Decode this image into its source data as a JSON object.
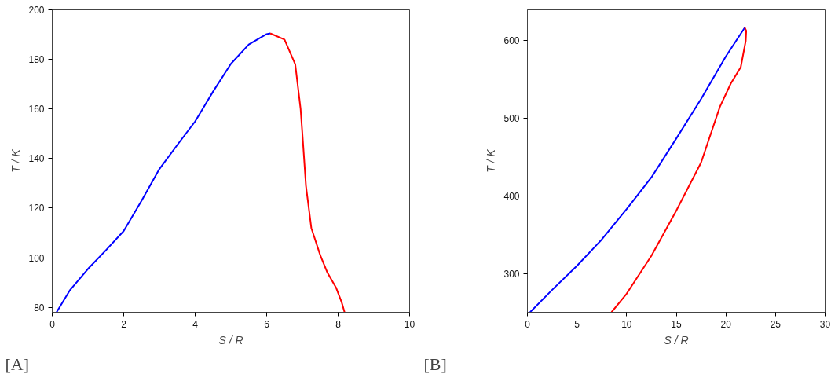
{
  "chart_data": [
    {
      "type": "line",
      "xlabel": "S / R",
      "ylabel": "T / K",
      "xlim": [
        0,
        10
      ],
      "ylim": [
        78,
        200
      ],
      "xticks": [
        0,
        2,
        4,
        6,
        8,
        10
      ],
      "yticks": [
        80,
        100,
        120,
        140,
        160,
        180,
        200
      ],
      "annotations": [
        "[A]"
      ],
      "series": [
        {
          "color": "#0000ff",
          "x": [
            0.12,
            0.5,
            1,
            1.5,
            2,
            2.5,
            3,
            3.5,
            4,
            4.5,
            5,
            5.5,
            6,
            6.1
          ],
          "values": [
            78,
            87,
            95.5,
            103,
            110.8,
            123,
            135.8,
            145.5,
            155,
            167,
            178.2,
            186,
            190.2,
            190.5
          ]
        },
        {
          "color": "#ff0000",
          "x": [
            6.1,
            6.5,
            6.8,
            6.95,
            7.0,
            7.1,
            7.25,
            7.5,
            7.7,
            7.94,
            8.1,
            8.18
          ],
          "values": [
            190.5,
            188,
            178,
            160,
            150,
            129,
            112,
            101,
            94,
            88,
            82,
            78
          ]
        }
      ]
    },
    {
      "type": "line",
      "xlabel": "S / R",
      "ylabel": "T / K",
      "xlim": [
        0,
        30
      ],
      "ylim": [
        250,
        640
      ],
      "xticks": [
        0,
        5,
        10,
        15,
        20,
        25,
        30
      ],
      "yticks": [
        300,
        400,
        500,
        600
      ],
      "annotations": [
        "[B]"
      ],
      "series": [
        {
          "color": "#0000ff",
          "x": [
            0.26,
            2.5,
            5,
            7.5,
            10,
            12.5,
            15,
            17.5,
            20,
            21.9
          ],
          "values": [
            250,
            279,
            310,
            344,
            383,
            424,
            474,
            525,
            580,
            617
          ]
        },
        {
          "color": "#ff0000",
          "x": [
            21.9,
            22.05,
            22.0,
            21.5,
            20.5,
            19.4,
            17.5,
            15,
            12.5,
            10,
            8.47
          ],
          "values": [
            617,
            613,
            600,
            566,
            545,
            515,
            443,
            381,
            323,
            274,
            250
          ]
        }
      ]
    }
  ]
}
